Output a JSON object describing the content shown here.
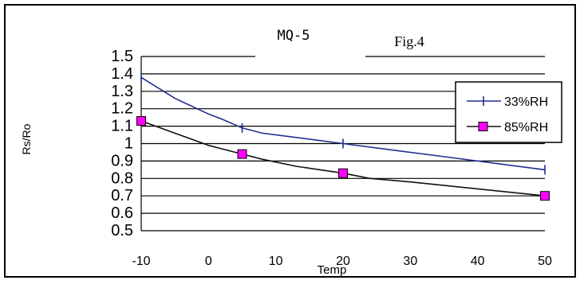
{
  "chart_data": {
    "type": "line",
    "title": "MQ-5",
    "annotation": "Fig.4",
    "xlabel": "Temp",
    "ylabel": "Rs/Ro",
    "xlim": [
      -10,
      50
    ],
    "ylim": [
      0.5,
      1.5
    ],
    "x_ticks": [
      "-10",
      "0",
      "10",
      "20",
      "30",
      "40",
      "50"
    ],
    "y_ticks": [
      "1.5",
      "1.4",
      "1.3",
      "1.2",
      "1.1",
      "1",
      "0.9",
      "0.8",
      "0.7",
      "0.6",
      "0.5"
    ],
    "grid": true,
    "legend_position": "right",
    "series": [
      {
        "name": "33%RH",
        "color": "#1f2f8f",
        "marker": "tick",
        "x": [
          -10,
          5,
          20,
          50
        ],
        "y": [
          1.38,
          1.09,
          1.0,
          0.85
        ],
        "curve_x": [
          -10,
          -5,
          0,
          2,
          5,
          8,
          12,
          16,
          20,
          28,
          36,
          44,
          50
        ],
        "curve_y": [
          1.38,
          1.26,
          1.17,
          1.14,
          1.09,
          1.06,
          1.04,
          1.02,
          1.0,
          0.96,
          0.92,
          0.88,
          0.85
        ]
      },
      {
        "name": "85%RH",
        "color": "#111111",
        "marker": "square",
        "marker_fill": "#ff00ff",
        "x": [
          -10,
          5,
          20,
          50
        ],
        "y": [
          1.13,
          0.94,
          0.83,
          0.7
        ],
        "curve_x": [
          -10,
          -5,
          0,
          2,
          5,
          8,
          13,
          20,
          24,
          30,
          40,
          50
        ],
        "curve_y": [
          1.13,
          1.06,
          0.99,
          0.97,
          0.94,
          0.91,
          0.87,
          0.83,
          0.8,
          0.78,
          0.74,
          0.7
        ]
      }
    ]
  }
}
